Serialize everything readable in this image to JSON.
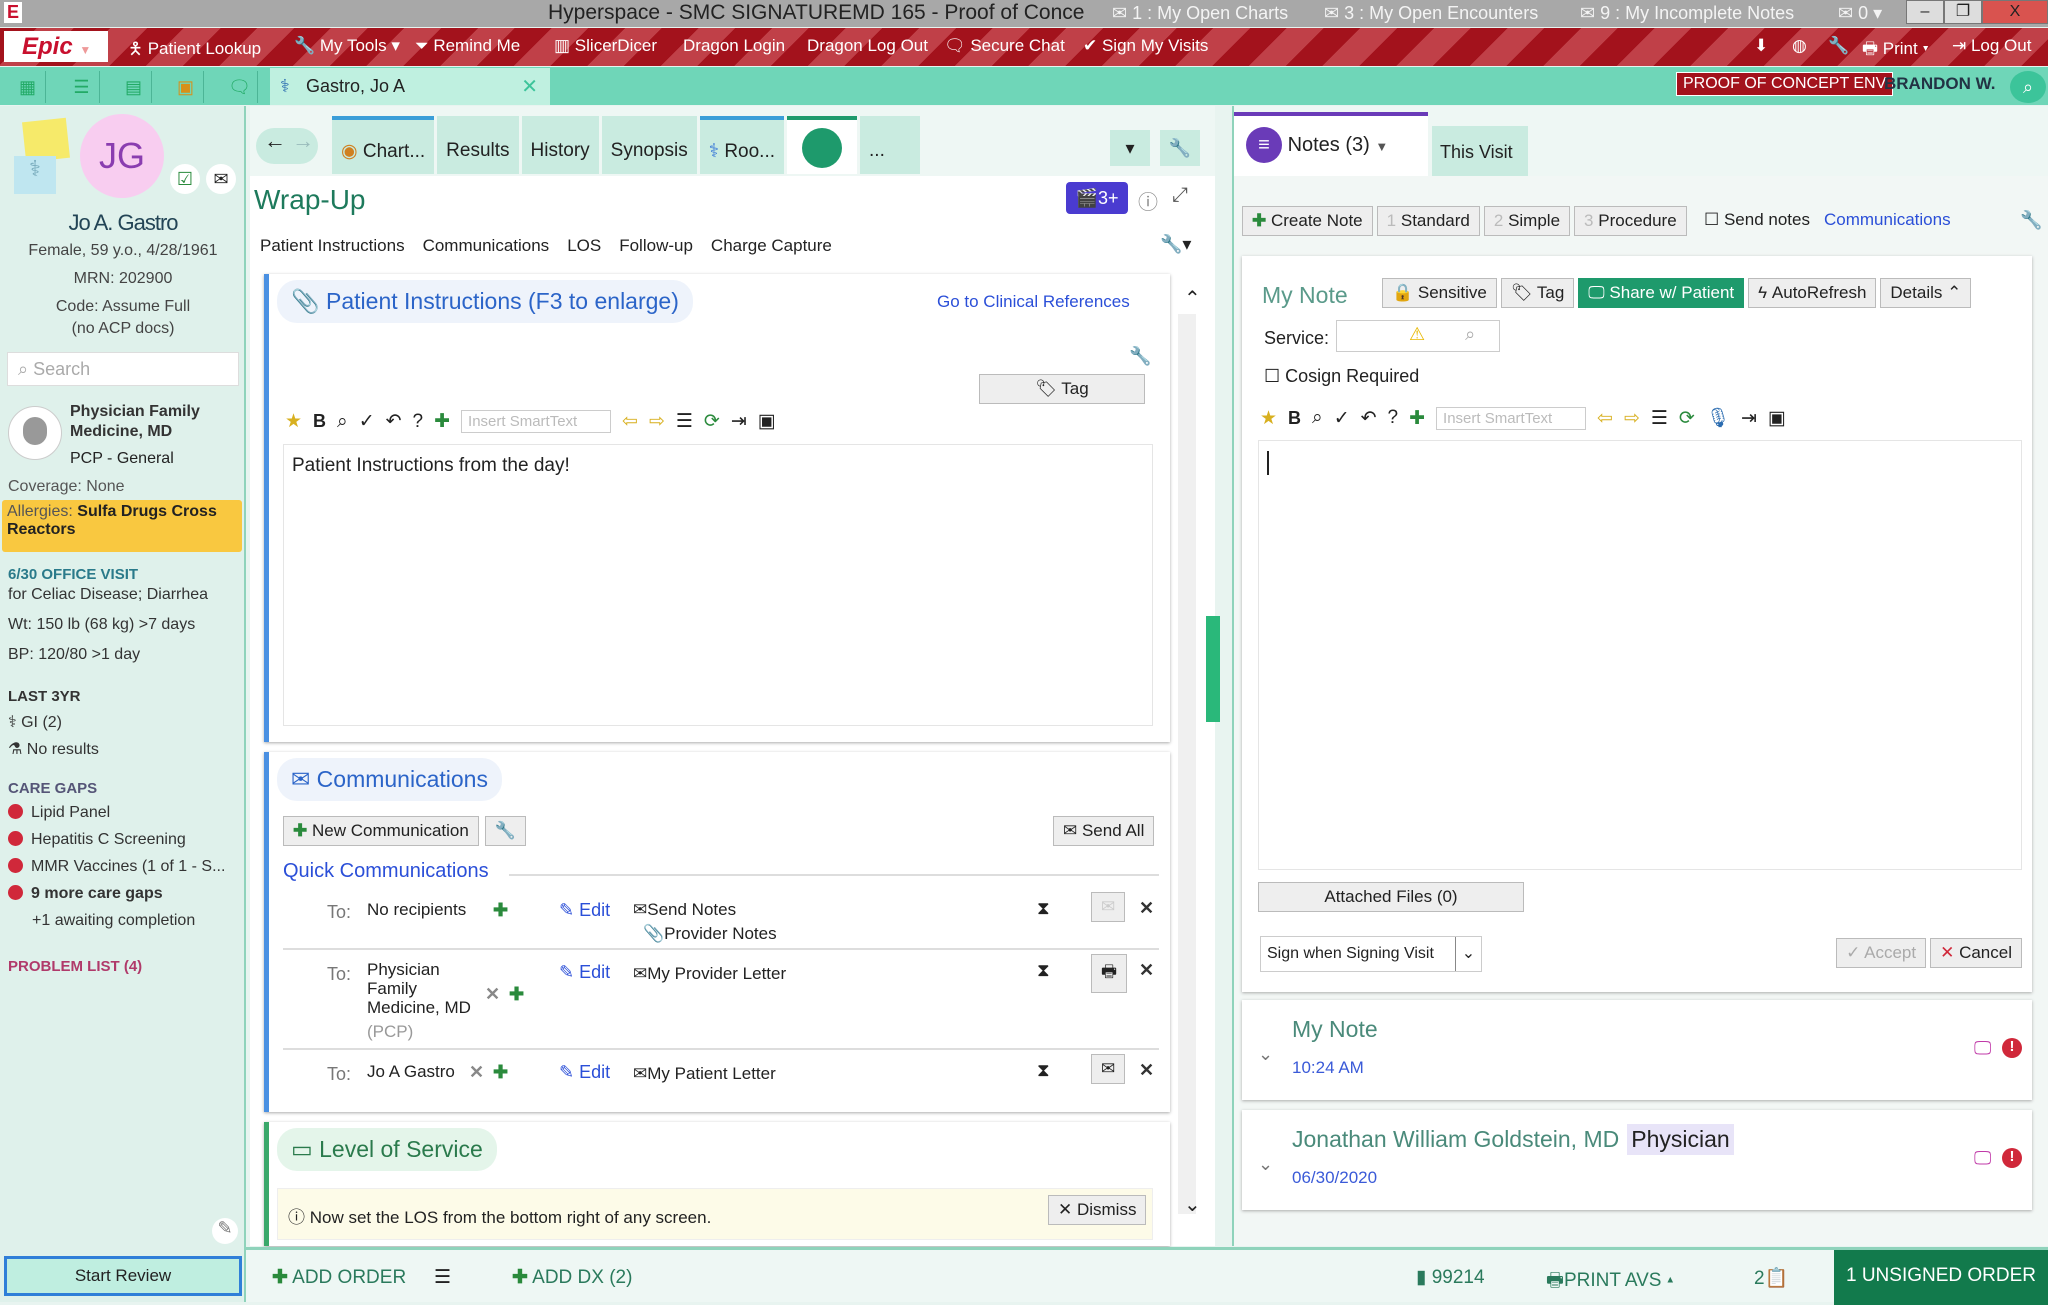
{
  "window": {
    "title": "Hyperspace - SMC SIGNATUREMD 165 - Proof of Conce",
    "inbox": [
      "1 : My Open Charts",
      "3 : My Open Encounters",
      "9 : My Incomplete Notes",
      "0"
    ]
  },
  "toolbar": {
    "logo": "Epic",
    "items": [
      "Patient Lookup",
      "My Tools",
      "Remind Me",
      "SlicerDicer",
      "Dragon Login",
      "Dragon Log Out",
      "Secure Chat",
      "Sign My Visits"
    ],
    "print": "Print",
    "logout": "Log Out"
  },
  "tabbar": {
    "patient_tab": "Gastro, Jo A",
    "env": "PROOF OF CONCEPT ENV",
    "user": "BRANDON W."
  },
  "patient": {
    "initials": "JG",
    "name": "Jo A. Gastro",
    "demo": "Female, 59 y.o., 4/28/1961",
    "mrn": "MRN: 202900",
    "code": "Code: Assume Full",
    "code2": "(no ACP docs)",
    "search_placeholder": "Search",
    "pcp_name": "Physician Family Medicine, MD",
    "pcp_role": "PCP - General",
    "coverage": "Coverage: None",
    "allergies_label": "Allergies:",
    "allergies": "Sulfa Drugs Cross Reactors",
    "visit": "6/30 OFFICE VISIT",
    "visit_for": "for Celiac Disease;  Diarrhea",
    "wt": "Wt:  150 lb (68 kg) >7 days",
    "bp": "BP:  120/80 >1 day",
    "last3": "LAST 3YR",
    "gi": "GI (2)",
    "results": "No results",
    "care_gaps": "CARE GAPS",
    "gaps": [
      "Lipid Panel",
      "Hepatitis C Screening",
      "MMR Vaccines (1 of 1 - S...",
      "9 more care gaps"
    ],
    "awaiting": "+1 awaiting completion",
    "problem_list": "PROBLEM LIST (4)",
    "start_review": "Start Review"
  },
  "activity_tabs": [
    "Chart...",
    "Results",
    "History",
    "Synopsis",
    "Roo...",
    "..."
  ],
  "wrapup": {
    "title": "Wrap-Up",
    "nav": [
      "Patient Instructions",
      "Communications",
      "LOS",
      "Follow-up",
      "Charge Capture"
    ],
    "badge": "3+"
  },
  "instructions": {
    "title": "Patient Instructions (F3 to enlarge)",
    "clinical_ref": "Go to Clinical References",
    "tag": "Tag",
    "smarttext_placeholder": "Insert SmartText",
    "text": "Patient Instructions from the day!"
  },
  "communications": {
    "title": "Communications",
    "new": "New Communication",
    "send_all": "Send All",
    "quick": "Quick Communications",
    "to": "To:",
    "edit": "Edit",
    "rows": [
      {
        "recipient": "No recipients",
        "doc": "Send Notes",
        "attach": "Provider Notes"
      },
      {
        "recipient": "Physician Family Medicine, MD",
        "sub": "(PCP)",
        "doc": "My Provider Letter"
      },
      {
        "recipient": "Jo A Gastro",
        "doc": "My Patient Letter"
      }
    ]
  },
  "los": {
    "title": "Level of Service",
    "msg": "Now set the LOS from the bottom right of any screen.",
    "dismiss": "Dismiss"
  },
  "notes": {
    "tab": "Notes (3)",
    "this_visit": "This Visit",
    "create": "Create Note",
    "standard": "Standard",
    "simple": "Simple",
    "procedure": "Procedure",
    "send_notes": "Send notes",
    "communications": "Communications",
    "note_title": "My Note",
    "sensitive": "Sensitive",
    "tag": "Tag",
    "share": "Share w/ Patient",
    "autorefresh": "AutoRefresh",
    "details": "Details",
    "service": "Service:",
    "cosign": "Cosign Required",
    "smarttext_placeholder": "Insert SmartText",
    "attached": "Attached Files (0)",
    "sign_option": "Sign when Signing Visit",
    "accept": "Accept",
    "cancel": "Cancel",
    "list": [
      {
        "title": "My Note",
        "sub": "10:24 AM"
      },
      {
        "title": "Jonathan William Goldstein, MD",
        "role": "Physician",
        "sub": "06/30/2020"
      }
    ]
  },
  "bottom": {
    "add_order": "ADD ORDER",
    "add_dx": "ADD DX (2)",
    "los_code": "99214",
    "print_avs": "PRINT AVS",
    "count": "2",
    "unsigned": "1 UNSIGNED ORDER"
  },
  "colors": {
    "red_bar": "#a3121c",
    "teal": "#6fd6b8",
    "share_green": "#1e9a6c",
    "link_blue": "#2b4fd8"
  }
}
